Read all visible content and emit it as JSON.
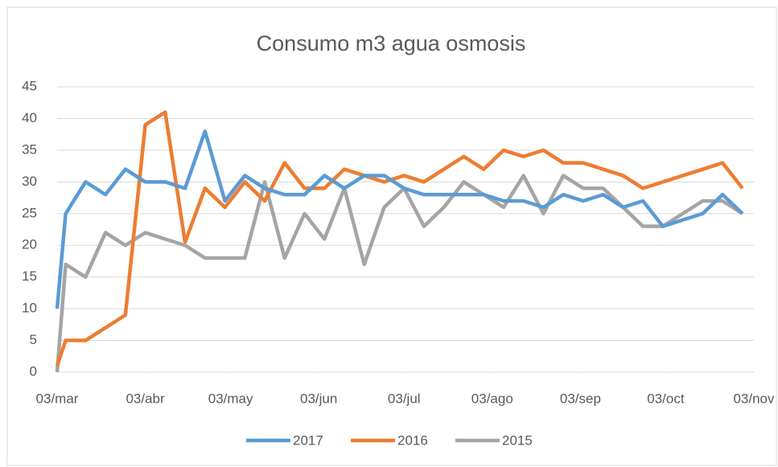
{
  "chart_data": {
    "type": "line",
    "title": "Consumo m3 agua osmosis",
    "x": [
      0,
      3,
      10,
      17,
      24,
      31,
      38,
      45,
      52,
      59,
      66,
      73,
      80,
      87,
      94,
      101,
      108,
      115,
      122,
      129,
      136,
      143,
      150,
      157,
      164,
      171,
      178,
      185,
      192,
      199,
      206,
      213,
      220,
      227,
      234,
      241
    ],
    "series": [
      {
        "name": "2017",
        "color": "#5b9bd5",
        "values": [
          10,
          25,
          30,
          28,
          32,
          30,
          30,
          29,
          38,
          27,
          31,
          29,
          28,
          28,
          31,
          29,
          31,
          31,
          29,
          28,
          28,
          28,
          28,
          27,
          27,
          26,
          28,
          27,
          28,
          26,
          27,
          23,
          24,
          25,
          28,
          25
        ]
      },
      {
        "name": "2016",
        "color": "#ed7d31",
        "values": [
          1,
          5,
          5,
          7,
          9,
          39,
          41,
          20.5,
          29,
          26,
          30,
          27,
          33,
          29,
          29,
          32,
          31,
          30,
          31,
          30,
          32,
          34,
          32,
          35,
          34,
          35,
          33,
          33,
          32,
          31,
          29,
          30,
          31,
          32,
          33,
          29
        ]
      },
      {
        "name": "2015",
        "color": "#a5a5a5",
        "values": [
          0,
          17,
          15,
          22,
          20,
          22,
          21,
          20,
          18,
          18,
          18,
          30,
          18,
          25,
          21,
          29,
          17,
          26,
          29,
          23,
          26,
          30,
          28,
          26,
          31,
          25,
          31,
          29,
          29,
          26,
          23,
          23,
          25,
          27,
          27,
          25
        ]
      }
    ],
    "xlim": [
      0,
      245
    ],
    "xticks": [
      {
        "value": 0,
        "label": "03/mar"
      },
      {
        "value": 31,
        "label": "03/abr"
      },
      {
        "value": 61,
        "label": "03/may"
      },
      {
        "value": 92,
        "label": "03/jun"
      },
      {
        "value": 122,
        "label": "03/jul"
      },
      {
        "value": 153,
        "label": "03/ago"
      },
      {
        "value": 184,
        "label": "03/sep"
      },
      {
        "value": 214,
        "label": "03/oct"
      },
      {
        "value": 245,
        "label": "03/nov"
      }
    ],
    "ylim": [
      0,
      45
    ],
    "yticks": [
      0,
      5,
      10,
      15,
      20,
      25,
      30,
      35,
      40,
      45
    ],
    "grid": true,
    "legend": "bottom"
  }
}
